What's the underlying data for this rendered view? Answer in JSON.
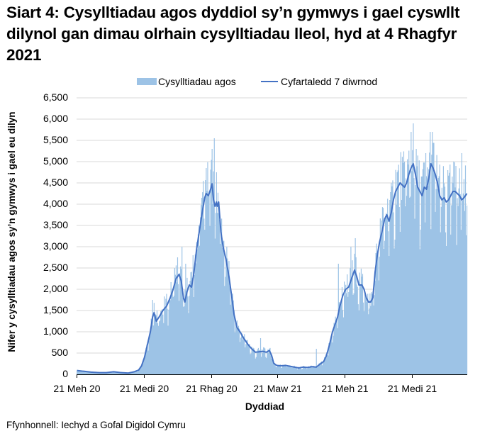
{
  "title": "Siart 4: Cysylltiadau agos dyddiol sy’n gymwys i gael cyswllt dilynol gan dimau olrhain cysylltiadau lleol, hyd at 4 Rhagfyr 2021",
  "legend": {
    "bar_label": "Cysylltiadau agos",
    "line_label": "Cyfartaledd 7 diwrnod"
  },
  "axes": {
    "ylabel": "Nifer y cysylltiadau agos sy’n gymwys i gael eu dilyn",
    "xlabel": "Dyddiad",
    "yticks": [
      "0",
      "500",
      "1,000",
      "1,500",
      "2,000",
      "2,500",
      "3,000",
      "3,500",
      "4,000",
      "4,500",
      "5,000",
      "5,500",
      "6,000",
      "6,500"
    ],
    "xticks": [
      "21 Meh 20",
      "21 Medi 20",
      "21 Rhag 20",
      "21 Maw 21",
      "21 Meh 21",
      "21 Medi 21"
    ]
  },
  "source": "Ffynhonnell: Iechyd a Gofal Digidol Cymru",
  "colors": {
    "bar": "#9dc3e6",
    "line": "#4472c4",
    "grid": "#d9d9d9",
    "axis": "#000000"
  },
  "chart_data": {
    "type": "bar+line",
    "title": "Siart 4: Cysylltiadau agos dyddiol sy’n gymwys i gael cyswllt dilynol gan dimau olrhain cysylltiadau lleol, hyd at 4 Rhagfyr 2021",
    "xlabel": "Dyddiad",
    "ylabel": "Nifer y cysylltiadau agos sy’n gymwys i gael eu dilyn",
    "ylim": [
      0,
      6500
    ],
    "ytick_step": 500,
    "x_start": "2020-06-21",
    "x_end": "2021-12-04",
    "x_tick_days": [
      0,
      92,
      183,
      273,
      365,
      457
    ],
    "grid": "horizontal",
    "legend_position": "top",
    "series": [
      {
        "name": "Cyfartaledd 7 diwrnod",
        "type": "line",
        "points_day_value": [
          [
            0,
            90
          ],
          [
            10,
            70
          ],
          [
            20,
            50
          ],
          [
            30,
            40
          ],
          [
            40,
            40
          ],
          [
            50,
            60
          ],
          [
            60,
            40
          ],
          [
            70,
            30
          ],
          [
            78,
            60
          ],
          [
            84,
            100
          ],
          [
            88,
            200
          ],
          [
            92,
            400
          ],
          [
            96,
            700
          ],
          [
            100,
            1000
          ],
          [
            103,
            1350
          ],
          [
            105,
            1450
          ],
          [
            108,
            1250
          ],
          [
            112,
            1350
          ],
          [
            117,
            1500
          ],
          [
            122,
            1600
          ],
          [
            127,
            1800
          ],
          [
            131,
            2000
          ],
          [
            135,
            2250
          ],
          [
            139,
            2350
          ],
          [
            142,
            2200
          ],
          [
            145,
            1800
          ],
          [
            147,
            1700
          ],
          [
            150,
            1950
          ],
          [
            153,
            2100
          ],
          [
            156,
            2050
          ],
          [
            159,
            2350
          ],
          [
            163,
            2950
          ],
          [
            167,
            3400
          ],
          [
            171,
            3850
          ],
          [
            174,
            4150
          ],
          [
            176,
            4250
          ],
          [
            179,
            4200
          ],
          [
            182,
            4350
          ],
          [
            184,
            4480
          ],
          [
            186,
            4100
          ],
          [
            188,
            3950
          ],
          [
            190,
            4050
          ],
          [
            191,
            3950
          ],
          [
            193,
            4050
          ],
          [
            196,
            3350
          ],
          [
            199,
            3000
          ],
          [
            203,
            2700
          ],
          [
            207,
            2300
          ],
          [
            211,
            1800
          ],
          [
            214,
            1400
          ],
          [
            218,
            1100
          ],
          [
            222,
            1000
          ],
          [
            227,
            850
          ],
          [
            233,
            700
          ],
          [
            238,
            600
          ],
          [
            243,
            520
          ],
          [
            248,
            530
          ],
          [
            253,
            540
          ],
          [
            258,
            520
          ],
          [
            262,
            560
          ],
          [
            265,
            450
          ],
          [
            268,
            260
          ],
          [
            272,
            210
          ],
          [
            278,
            200
          ],
          [
            284,
            210
          ],
          [
            290,
            190
          ],
          [
            296,
            170
          ],
          [
            302,
            150
          ],
          [
            308,
            170
          ],
          [
            314,
            160
          ],
          [
            320,
            180
          ],
          [
            326,
            170
          ],
          [
            331,
            240
          ],
          [
            336,
            300
          ],
          [
            340,
            450
          ],
          [
            344,
            700
          ],
          [
            348,
            1000
          ],
          [
            352,
            1200
          ],
          [
            355,
            1350
          ],
          [
            358,
            1600
          ],
          [
            362,
            1850
          ],
          [
            366,
            2000
          ],
          [
            370,
            2050
          ],
          [
            372,
            2150
          ],
          [
            375,
            2300
          ],
          [
            378,
            2450
          ],
          [
            381,
            2300
          ],
          [
            384,
            2100
          ],
          [
            388,
            2100
          ],
          [
            391,
            2000
          ],
          [
            394,
            1800
          ],
          [
            397,
            1700
          ],
          [
            400,
            1700
          ],
          [
            403,
            1800
          ],
          [
            406,
            2400
          ],
          [
            409,
            2800
          ],
          [
            412,
            3100
          ],
          [
            416,
            3400
          ],
          [
            419,
            3650
          ],
          [
            422,
            3750
          ],
          [
            425,
            3600
          ],
          [
            428,
            3800
          ],
          [
            431,
            4100
          ],
          [
            434,
            4300
          ],
          [
            437,
            4400
          ],
          [
            440,
            4500
          ],
          [
            443,
            4450
          ],
          [
            446,
            4400
          ],
          [
            449,
            4500
          ],
          [
            452,
            4700
          ],
          [
            455,
            4850
          ],
          [
            458,
            4950
          ],
          [
            461,
            4700
          ],
          [
            464,
            4400
          ],
          [
            467,
            4300
          ],
          [
            470,
            4200
          ],
          [
            473,
            4400
          ],
          [
            476,
            4350
          ],
          [
            479,
            4600
          ],
          [
            482,
            4950
          ],
          [
            485,
            4850
          ],
          [
            488,
            4700
          ],
          [
            491,
            4500
          ],
          [
            494,
            4200
          ],
          [
            497,
            4100
          ],
          [
            500,
            4150
          ],
          [
            503,
            4050
          ],
          [
            506,
            4100
          ],
          [
            509,
            4200
          ],
          [
            512,
            4300
          ],
          [
            515,
            4300
          ],
          [
            518,
            4250
          ],
          [
            521,
            4200
          ],
          [
            524,
            4100
          ],
          [
            527,
            4150
          ],
          [
            531,
            4250
          ]
        ]
      },
      {
        "name": "Cysylltiadau agos",
        "type": "bar",
        "daily_values_note": "daily bars fluctuate around the 7-day average; peaks approx.",
        "notable_peaks_day_value": [
          [
            103,
            1750
          ],
          [
            110,
            1200
          ],
          [
            133,
            2500
          ],
          [
            137,
            2750
          ],
          [
            143,
            3000
          ],
          [
            148,
            2600
          ],
          [
            158,
            2800
          ],
          [
            166,
            3500
          ],
          [
            170,
            4150
          ],
          [
            176,
            4850
          ],
          [
            180,
            4300
          ],
          [
            184,
            5300
          ],
          [
            187,
            5550
          ],
          [
            190,
            4750
          ],
          [
            250,
            850
          ],
          [
            326,
            600
          ],
          [
            356,
            2600
          ],
          [
            373,
            3000
          ],
          [
            379,
            3200
          ],
          [
            426,
            4100
          ],
          [
            436,
            4750
          ],
          [
            446,
            5000
          ],
          [
            455,
            5700
          ],
          [
            458,
            5900
          ],
          [
            462,
            5300
          ],
          [
            475,
            5200
          ],
          [
            481,
            5700
          ],
          [
            484,
            5700
          ],
          [
            505,
            4800
          ],
          [
            516,
            4900
          ],
          [
            524,
            5200
          ]
        ]
      }
    ]
  }
}
